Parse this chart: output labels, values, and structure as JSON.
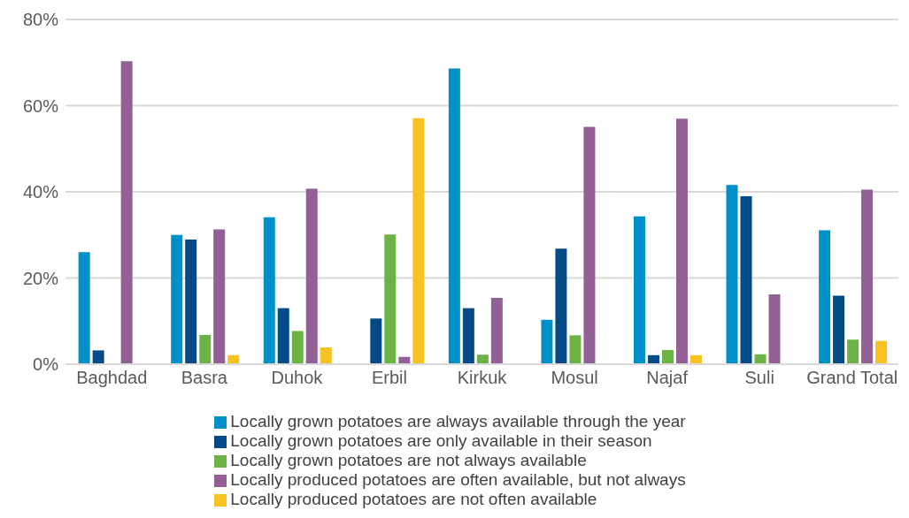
{
  "chart_data": {
    "type": "bar",
    "categories": [
      "Baghdad",
      "Basra",
      "Duhok",
      "Erbil",
      "Kirkuk",
      "Mosul",
      "Najaf",
      "Suli",
      "Grand Total"
    ],
    "series": [
      {
        "name": "Locally grown potatoes are always available through the year",
        "color": "#0090c8",
        "values": [
          26.0,
          30.0,
          34.1,
          null,
          68.6,
          10.3,
          34.3,
          41.6,
          31.1
        ]
      },
      {
        "name": "Locally grown potatoes are only available in their season",
        "color": "#034a87",
        "values": [
          3.2,
          28.9,
          13.0,
          10.6,
          13.0,
          26.8,
          2.1,
          39.0,
          15.9
        ]
      },
      {
        "name": "Locally grown potatoes are not always available",
        "color": "#6bb344",
        "values": [
          null,
          6.8,
          7.7,
          30.1,
          2.2,
          6.7,
          3.3,
          2.3,
          5.7
        ]
      },
      {
        "name": "Locally produced potatoes are often available, but not always",
        "color": "#925f96",
        "values": [
          70.3,
          31.3,
          40.7,
          1.7,
          15.4,
          55.1,
          57.0,
          16.2,
          40.5
        ]
      },
      {
        "name": "Locally produced potatoes are not often available",
        "color": "#f8c322",
        "values": [
          null,
          2.1,
          3.9,
          57.1,
          null,
          null,
          2.1,
          null,
          5.4
        ]
      }
    ],
    "ylim": [
      0,
      80
    ],
    "yticks": [
      {
        "value": 0,
        "label": "0%"
      },
      {
        "value": 20,
        "label": "20%"
      },
      {
        "value": 40,
        "label": "40%"
      },
      {
        "value": 60,
        "label": "60%"
      },
      {
        "value": 80,
        "label": "80%"
      }
    ],
    "grid": "y",
    "legend": "bottom"
  }
}
